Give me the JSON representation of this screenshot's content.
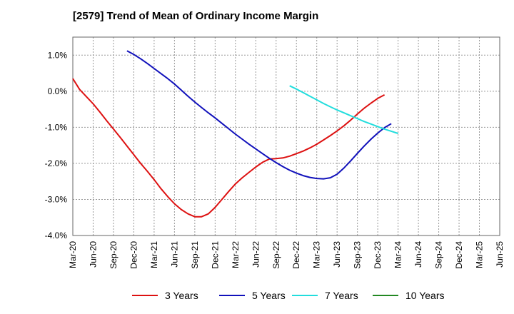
{
  "chart_data": {
    "type": "line",
    "title": "[2579]  Trend of Mean of Ordinary Income Margin",
    "xlabel": "",
    "ylabel": "",
    "x_ticks": [
      "Mar-20",
      "Jun-20",
      "Sep-20",
      "Dec-20",
      "Mar-21",
      "Jun-21",
      "Sep-21",
      "Dec-21",
      "Mar-22",
      "Jun-22",
      "Sep-22",
      "Dec-22",
      "Mar-23",
      "Jun-23",
      "Sep-23",
      "Dec-23",
      "Mar-24",
      "Jun-24",
      "Sep-24",
      "Dec-24",
      "Mar-25",
      "Jun-25"
    ],
    "y_ticks": [
      "1.0%",
      "0.0%",
      "-1.0%",
      "-2.0%",
      "-3.0%",
      "-4.0%"
    ],
    "ylim": [
      -4.0,
      1.5
    ],
    "grid": true,
    "legend_position": "bottom",
    "series": [
      {
        "name": "3 Years",
        "color": "#dd1111",
        "start": "Mar-20",
        "values": [
          0.35,
          0.05,
          -0.15,
          -0.35,
          -0.58,
          -0.82,
          -1.05,
          -1.28,
          -1.52,
          -1.76,
          -2.0,
          -2.22,
          -2.45,
          -2.7,
          -2.92,
          -3.12,
          -3.28,
          -3.4,
          -3.48,
          -3.48,
          -3.4,
          -3.22,
          -3.0,
          -2.78,
          -2.57,
          -2.4,
          -2.25,
          -2.1,
          -1.97,
          -1.88,
          -1.87,
          -1.85,
          -1.8,
          -1.73,
          -1.66,
          -1.57,
          -1.47,
          -1.35,
          -1.23,
          -1.1,
          -0.96,
          -0.8,
          -0.63,
          -0.47,
          -0.33,
          -0.2,
          -0.1
        ]
      },
      {
        "name": "5 Years",
        "color": "#1111bb",
        "start": "Nov-20",
        "values": [
          1.12,
          1.02,
          0.9,
          0.77,
          0.63,
          0.49,
          0.35,
          0.2,
          0.03,
          -0.14,
          -0.3,
          -0.45,
          -0.6,
          -0.74,
          -0.89,
          -1.04,
          -1.19,
          -1.33,
          -1.47,
          -1.6,
          -1.73,
          -1.86,
          -1.98,
          -2.09,
          -2.19,
          -2.27,
          -2.34,
          -2.39,
          -2.42,
          -2.43,
          -2.4,
          -2.3,
          -2.13,
          -1.93,
          -1.72,
          -1.52,
          -1.33,
          -1.16,
          -1.01,
          -0.9
        ]
      },
      {
        "name": "7 Years",
        "color": "#22dddd",
        "start": "Nov-22",
        "values": [
          0.15,
          0.06,
          -0.04,
          -0.14,
          -0.24,
          -0.34,
          -0.43,
          -0.52,
          -0.6,
          -0.68,
          -0.76,
          -0.84,
          -0.91,
          -0.98,
          -1.05,
          -1.11,
          -1.17
        ]
      },
      {
        "name": "10 Years",
        "color": "#228822",
        "start": "",
        "values": []
      }
    ]
  }
}
